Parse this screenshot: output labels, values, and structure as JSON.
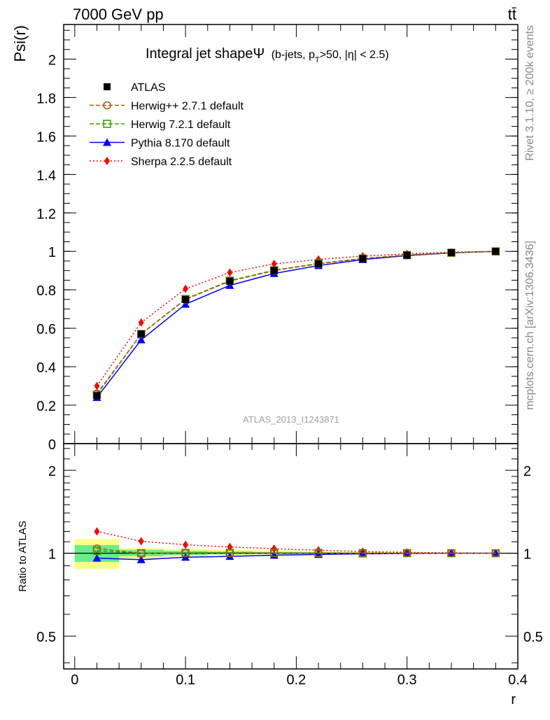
{
  "header": {
    "energy_label": "7000 GeV pp",
    "process_label": "tt̄",
    "side_label_top": "Rivet 3.1.10, ≥ 200k events",
    "side_label_bottom": "mcplots.cern.ch [arXiv:1306.3436]",
    "analysis_label": "ATLAS_2013_I1243871"
  },
  "colors": {
    "atlas": "#000000",
    "herwigpp": "#b35900",
    "herwig7": "#339900",
    "pythia": "#0000ff",
    "sherpa": "#ff0000",
    "band_stat": "#66ee88",
    "band_total": "#ffff88",
    "axis": "#000000",
    "side_text": "#888888"
  },
  "chart_data": [
    {
      "type": "line",
      "title_main": "Integral jet shapeΨ",
      "title_detail": "(b-jets, p",
      "title_sub": "T",
      "title_tail": ">50, |η| < 2.5)",
      "ylabel": "Psi(r)",
      "ylim": [
        0,
        2.18
      ],
      "yticks": [
        0,
        0.2,
        0.4,
        0.6,
        0.8,
        1,
        1.2,
        1.4,
        1.6,
        1.8,
        2
      ],
      "ytick_labels": [
        "0",
        "0.2",
        "0.4",
        "0.6",
        "0.8",
        "1",
        "1.2",
        "1.4",
        "1.6",
        "1.8",
        "2"
      ],
      "xlim": [
        -0.01,
        0.4
      ],
      "x": [
        0.02,
        0.06,
        0.1,
        0.14,
        0.18,
        0.22,
        0.26,
        0.3,
        0.34,
        0.38
      ],
      "legend_position": "top-left",
      "series": [
        {
          "name": "ATLAS",
          "key": "atlas",
          "marker": "square-filled",
          "line": "none",
          "values": [
            0.25,
            0.57,
            0.75,
            0.845,
            0.9,
            0.935,
            0.962,
            0.98,
            0.993,
            1.0
          ]
        },
        {
          "name": "Herwig++ 2.7.1 default",
          "key": "herwigpp",
          "marker": "circle-open",
          "line": "dashed",
          "values": [
            0.26,
            0.57,
            0.75,
            0.845,
            0.9,
            0.935,
            0.962,
            0.98,
            0.993,
            1.0
          ]
        },
        {
          "name": "Herwig 7.2.1 default",
          "key": "herwig7",
          "marker": "square-open",
          "line": "dashed",
          "values": [
            0.255,
            0.57,
            0.752,
            0.848,
            0.902,
            0.937,
            0.963,
            0.981,
            0.993,
            1.0
          ]
        },
        {
          "name": "Pythia 8.170 default",
          "key": "pythia",
          "marker": "triangle-filled",
          "line": "solid",
          "values": [
            0.24,
            0.54,
            0.725,
            0.823,
            0.885,
            0.926,
            0.957,
            0.978,
            0.992,
            1.0
          ]
        },
        {
          "name": "Sherpa 2.2.5 default",
          "key": "sherpa",
          "marker": "diamond-filled",
          "line": "dotted",
          "values": [
            0.3,
            0.63,
            0.805,
            0.89,
            0.935,
            0.958,
            0.975,
            0.987,
            0.996,
            1.0
          ]
        }
      ]
    },
    {
      "type": "line",
      "ylabel": "Ratio to ATLAS",
      "xlabel": "r",
      "ylim": [
        0.38,
        2.5
      ],
      "yscale": "log",
      "yticks": [
        0.5,
        1,
        2
      ],
      "ytick_labels": [
        "0.5",
        "1",
        "2"
      ],
      "xlim": [
        -0.01,
        0.4
      ],
      "xticks": [
        0,
        0.1,
        0.2,
        0.3,
        0.4
      ],
      "xtick_labels": [
        "0",
        "0.1",
        "0.2",
        "0.3",
        "0.4"
      ],
      "x": [
        0.02,
        0.06,
        0.1,
        0.14,
        0.18,
        0.22,
        0.26,
        0.3,
        0.34,
        0.38
      ],
      "bands": {
        "bin_edges": [
          0.0,
          0.04,
          0.08,
          0.12,
          0.16,
          0.2,
          0.24,
          0.28,
          0.32,
          0.36,
          0.4
        ],
        "total_lo": [
          0.875,
          0.955,
          0.975,
          0.985,
          0.99,
          0.993,
          0.995,
          0.997,
          0.998,
          0.999
        ],
        "total_hi": [
          1.125,
          1.045,
          1.035,
          1.03,
          1.025,
          1.015,
          1.01,
          1.007,
          1.004,
          1.002
        ],
        "stat_lo": [
          0.93,
          0.975,
          0.985,
          0.99,
          0.993,
          0.995,
          0.997,
          0.998,
          0.999,
          0.9995
        ],
        "stat_hi": [
          1.07,
          1.03,
          1.02,
          1.015,
          1.01,
          1.008,
          1.005,
          1.004,
          1.002,
          1.001
        ]
      },
      "series": [
        {
          "name": "Herwig++ 2.7.1 default",
          "key": "herwigpp",
          "marker": "circle-open",
          "line": "dashed",
          "values": [
            1.04,
            1.0,
            1.0,
            1.0,
            1.0,
            1.0,
            1.0,
            1.0,
            1.0,
            1.0
          ]
        },
        {
          "name": "Herwig 7.2.1 default",
          "key": "herwig7",
          "marker": "square-open",
          "line": "dashed",
          "values": [
            1.02,
            1.0,
            1.003,
            1.004,
            1.002,
            1.002,
            1.001,
            1.001,
            1.0,
            1.0
          ]
        },
        {
          "name": "Pythia 8.170 default",
          "key": "pythia",
          "marker": "triangle-filled",
          "line": "solid",
          "values": [
            0.96,
            0.947,
            0.967,
            0.974,
            0.983,
            0.99,
            0.995,
            0.998,
            0.999,
            1.0
          ]
        },
        {
          "name": "Sherpa 2.2.5 default",
          "key": "sherpa",
          "marker": "diamond-filled",
          "line": "dotted",
          "values": [
            1.2,
            1.105,
            1.073,
            1.053,
            1.039,
            1.025,
            1.014,
            1.007,
            1.003,
            1.0
          ]
        }
      ]
    }
  ]
}
